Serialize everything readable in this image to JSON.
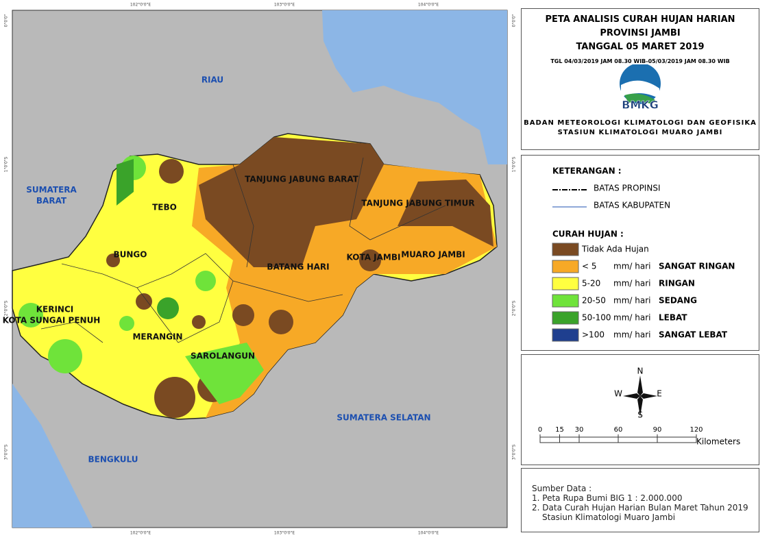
{
  "header": {
    "title_lines": [
      "PETA ANALISIS CURAH HUJAN HARIAN",
      "PROVINSI JAMBI",
      "TANGGAL 05 MARET 2019"
    ],
    "period": "TGL 04/03/2019 JAM 08.30 WIB-05/03/2019 JAM 08.30 WIB",
    "logo": "BMKG",
    "agency": "BADAN METEOROLOGI KLIMATOLOGI DAN GEOFISIKA",
    "station": "STASIUN KLIMATOLOGI MUARO JAMBI"
  },
  "legend": {
    "title": "KETERANGAN :",
    "lines": [
      "BATAS PROPINSI",
      "BATAS KABUPATEN"
    ],
    "rain_title": "CURAH HUJAN :",
    "classes": [
      {
        "range": "Tidak Ada Hujan",
        "unit": "",
        "label": ""
      },
      {
        "range": "< 5",
        "unit": "mm/ hari",
        "label": "SANGAT RINGAN"
      },
      {
        "range": "5-20",
        "unit": "mm/ hari",
        "label": "RINGAN"
      },
      {
        "range": "20-50",
        "unit": "mm/ hari",
        "label": "SEDANG"
      },
      {
        "range": "50-100",
        "unit": "mm/ hari",
        "label": "LEBAT"
      },
      {
        "range": ">100",
        "unit": "mm/ hari",
        "label": "SANGAT LEBAT"
      }
    ]
  },
  "compass": {
    "n": "N",
    "s": "S",
    "e": "E",
    "w": "W"
  },
  "scale": {
    "ticks": [
      0,
      15,
      30,
      60,
      90,
      120
    ],
    "unit": "Kilometers"
  },
  "source": {
    "title": "Sumber Data :",
    "items": [
      "1. Peta Rupa Bumi BIG 1 : 2.000.000",
      "2. Data Curah Hujan Harian Bulan Maret Tahun 2019",
      "Stasiun Klimatologi Muaro Jambi"
    ]
  },
  "map": {
    "regions": [
      "RIAU",
      "SUMATERA BARAT",
      "TANJUNG JABUNG BARAT",
      "TANJUNG JABUNG TIMUR",
      "TEBO",
      "BUNGO",
      "KOTA JAMBI",
      "MUARO JAMBI",
      "BATANG HARI",
      "KERINCI",
      "KOTA SUNGAI PENUH",
      "MERANGIN",
      "SAROLANGUN",
      "SUMATERA SELATAN",
      "BENGKULU"
    ],
    "lon_labels": [
      "102°0'0\"E",
      "103°0'0\"E",
      "104°0'0\"E"
    ],
    "lat_labels": [
      "0°0'0\"",
      "1°0'0\"S",
      "2°0'0\"S",
      "3°0'0\"S"
    ]
  }
}
